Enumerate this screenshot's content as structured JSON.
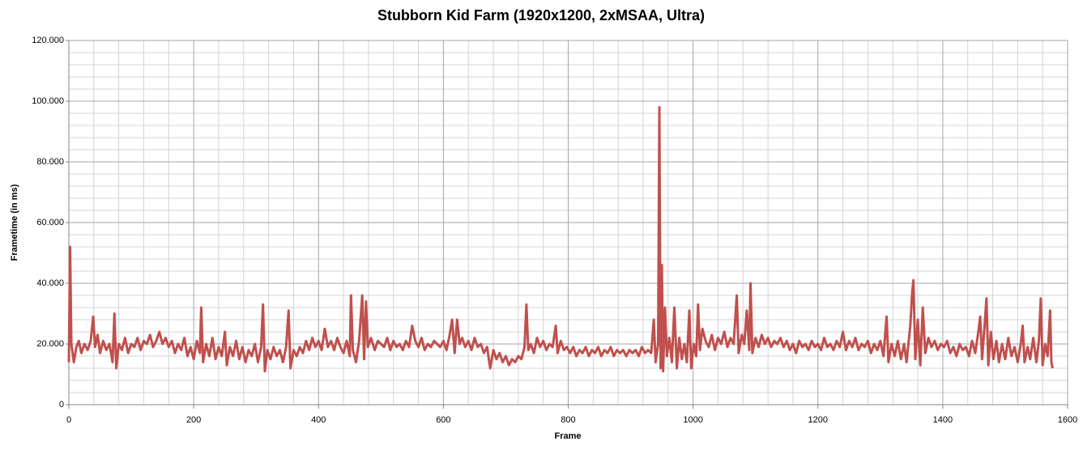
{
  "chart_data": {
    "type": "line",
    "title": "Stubborn Kid Farm (1920x1200,  2xMSAA, Ultra)",
    "x_label": "Frame",
    "y_label": "Frametime (in ms)",
    "color": "#c0504d",
    "grid": true,
    "xlim": [
      0,
      1600
    ],
    "xticks": [
      0,
      200,
      400,
      600,
      800,
      1000,
      1200,
      1400,
      1600
    ],
    "ylim": [
      0,
      120
    ],
    "yticks": [
      0,
      {
        "value": 20,
        "label": "20.000"
      },
      {
        "value": 40,
        "label": "40.000"
      },
      {
        "value": 60,
        "label": "60.000"
      },
      {
        "value": 80,
        "label": "80.000"
      },
      {
        "value": 100,
        "label": "100.000"
      },
      {
        "value": 120,
        "label": "120.000"
      }
    ],
    "x": [
      0,
      2,
      4,
      8,
      12,
      16,
      20,
      25,
      30,
      35,
      39,
      42,
      46,
      50,
      55,
      60,
      65,
      70,
      73,
      76,
      80,
      85,
      90,
      95,
      100,
      105,
      110,
      115,
      120,
      125,
      130,
      135,
      140,
      145,
      150,
      155,
      160,
      165,
      170,
      175,
      180,
      185,
      190,
      195,
      200,
      205,
      210,
      212,
      215,
      220,
      225,
      230,
      235,
      240,
      245,
      250,
      253,
      258,
      263,
      268,
      273,
      278,
      283,
      288,
      293,
      298,
      303,
      308,
      311,
      314,
      318,
      323,
      328,
      333,
      338,
      343,
      348,
      352,
      355,
      360,
      365,
      370,
      375,
      380,
      385,
      390,
      395,
      400,
      405,
      410,
      415,
      420,
      425,
      430,
      435,
      440,
      445,
      450,
      452,
      455,
      460,
      465,
      470,
      473,
      476,
      479,
      484,
      490,
      495,
      500,
      505,
      510,
      515,
      520,
      525,
      530,
      535,
      540,
      545,
      550,
      555,
      560,
      565,
      570,
      575,
      580,
      585,
      590,
      595,
      600,
      605,
      610,
      614,
      618,
      622,
      626,
      630,
      635,
      640,
      645,
      650,
      655,
      660,
      665,
      670,
      675,
      680,
      685,
      690,
      695,
      700,
      705,
      710,
      715,
      720,
      725,
      730,
      733,
      736,
      740,
      745,
      750,
      755,
      760,
      765,
      770,
      775,
      780,
      783,
      788,
      793,
      798,
      803,
      808,
      813,
      818,
      823,
      828,
      833,
      838,
      843,
      848,
      853,
      858,
      863,
      868,
      873,
      878,
      883,
      888,
      893,
      898,
      903,
      908,
      913,
      918,
      923,
      928,
      933,
      937,
      940,
      944,
      946,
      948,
      950,
      952,
      955,
      958,
      962,
      966,
      970,
      974,
      978,
      982,
      986,
      990,
      994,
      997,
      1001,
      1005,
      1008,
      1011,
      1015,
      1020,
      1025,
      1030,
      1035,
      1040,
      1045,
      1050,
      1055,
      1060,
      1065,
      1070,
      1073,
      1078,
      1082,
      1086,
      1090,
      1092,
      1095,
      1100,
      1105,
      1110,
      1115,
      1120,
      1125,
      1130,
      1135,
      1140,
      1145,
      1150,
      1155,
      1160,
      1165,
      1170,
      1175,
      1180,
      1185,
      1190,
      1195,
      1200,
      1205,
      1210,
      1215,
      1220,
      1225,
      1230,
      1235,
      1240,
      1245,
      1250,
      1255,
      1260,
      1265,
      1270,
      1275,
      1280,
      1285,
      1290,
      1295,
      1300,
      1305,
      1310,
      1313,
      1318,
      1323,
      1328,
      1333,
      1338,
      1342,
      1348,
      1351,
      1353,
      1356,
      1360,
      1364,
      1368,
      1372,
      1377,
      1382,
      1387,
      1392,
      1397,
      1402,
      1407,
      1412,
      1417,
      1422,
      1427,
      1432,
      1437,
      1442,
      1447,
      1452,
      1457,
      1460,
      1463,
      1467,
      1470,
      1473,
      1477,
      1481,
      1486,
      1490,
      1495,
      1500,
      1505,
      1510,
      1515,
      1520,
      1525,
      1528,
      1531,
      1536,
      1540,
      1545,
      1550,
      1554,
      1557,
      1560,
      1564,
      1568,
      1572,
      1574,
      1576
    ],
    "values": [
      14,
      52,
      20,
      14,
      19,
      21,
      17,
      20,
      18,
      21,
      29,
      19,
      23,
      17,
      21,
      18,
      20,
      14,
      30,
      12,
      20,
      18,
      22,
      17,
      20,
      19,
      22,
      18,
      21,
      20,
      23,
      19,
      21,
      24,
      20,
      22,
      19,
      21,
      17,
      20,
      18,
      22,
      16,
      19,
      15,
      21,
      17,
      32,
      14,
      20,
      16,
      22,
      15,
      19,
      16,
      24,
      13,
      19,
      16,
      21,
      15,
      19,
      14,
      18,
      16,
      20,
      14,
      19,
      33,
      11,
      18,
      15,
      19,
      16,
      18,
      14,
      19,
      31,
      12,
      18,
      16,
      19,
      17,
      21,
      18,
      22,
      19,
      21,
      18,
      25,
      19,
      21,
      18,
      22,
      19,
      17,
      21,
      16,
      36,
      18,
      14,
      21,
      36,
      15,
      34,
      19,
      22,
      18,
      21,
      20,
      19,
      22,
      18,
      21,
      19,
      20,
      18,
      21,
      19,
      26,
      21,
      19,
      22,
      18,
      20,
      19,
      21,
      20,
      19,
      21,
      18,
      23,
      28,
      17,
      28,
      20,
      22,
      19,
      21,
      18,
      22,
      19,
      20,
      17,
      19,
      12,
      18,
      15,
      17,
      14,
      16,
      13,
      15,
      14,
      16,
      15,
      19,
      33,
      18,
      20,
      17,
      22,
      19,
      21,
      18,
      20,
      19,
      26,
      17,
      21,
      18,
      19,
      17,
      19,
      16,
      18,
      17,
      19,
      16,
      18,
      17,
      19,
      16,
      18,
      17,
      19,
      16,
      18,
      17,
      18,
      16,
      18,
      17,
      18,
      16,
      19,
      17,
      18,
      17,
      28,
      14,
      20,
      98,
      12,
      46,
      11,
      32,
      16,
      22,
      14,
      32,
      12,
      22,
      15,
      20,
      14,
      31,
      12,
      20,
      16,
      33,
      18,
      25,
      21,
      19,
      23,
      18,
      22,
      20,
      24,
      19,
      22,
      20,
      36,
      17,
      23,
      20,
      31,
      18,
      40,
      17,
      22,
      19,
      23,
      20,
      22,
      19,
      21,
      20,
      22,
      19,
      21,
      18,
      20,
      17,
      21,
      19,
      20,
      18,
      21,
      19,
      20,
      18,
      22,
      19,
      20,
      18,
      21,
      19,
      24,
      18,
      21,
      19,
      22,
      18,
      20,
      19,
      21,
      17,
      20,
      18,
      21,
      16,
      29,
      14,
      20,
      16,
      21,
      15,
      20,
      14,
      26,
      37,
      41,
      15,
      28,
      13,
      32,
      17,
      22,
      19,
      21,
      18,
      20,
      19,
      21,
      17,
      19,
      16,
      20,
      18,
      19,
      16,
      21,
      17,
      24,
      29,
      15,
      26,
      35,
      13,
      24,
      15,
      21,
      14,
      20,
      15,
      22,
      16,
      19,
      14,
      20,
      26,
      14,
      19,
      15,
      22,
      14,
      21,
      35,
      13,
      20,
      16,
      31,
      14,
      12
    ]
  }
}
